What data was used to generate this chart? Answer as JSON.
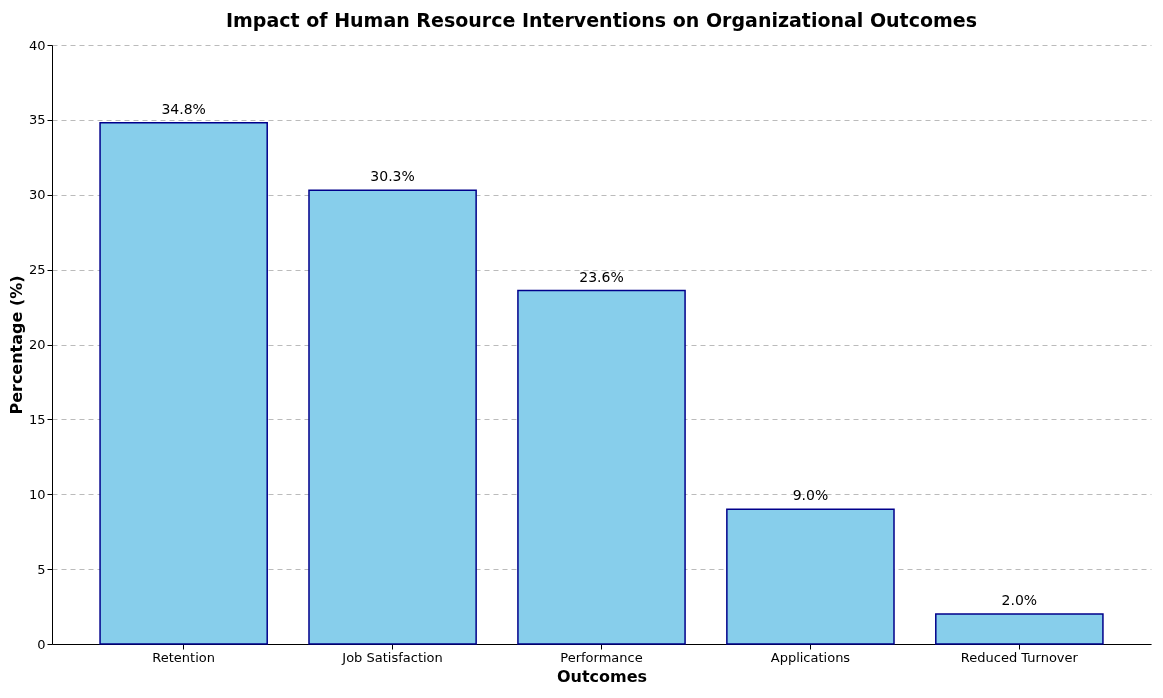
{
  "chart_data": {
    "type": "bar",
    "title": "Impact of Human Resource Interventions on Organizational Outcomes",
    "xlabel": "Outcomes",
    "ylabel": "Percentage (%)",
    "categories": [
      "Retention",
      "Job Satisfaction",
      "Performance",
      "Applications",
      "Reduced Turnover"
    ],
    "values": [
      34.8,
      30.3,
      23.6,
      9.0,
      2.0
    ],
    "value_labels": [
      "34.8%",
      "30.3%",
      "23.6%",
      "9.0%",
      "2.0%"
    ],
    "color": "#87ceeb",
    "ylim": [
      0,
      40
    ],
    "yticks": [
      0,
      5,
      10,
      15,
      20,
      25,
      30,
      35,
      40
    ],
    "grid": "y"
  }
}
